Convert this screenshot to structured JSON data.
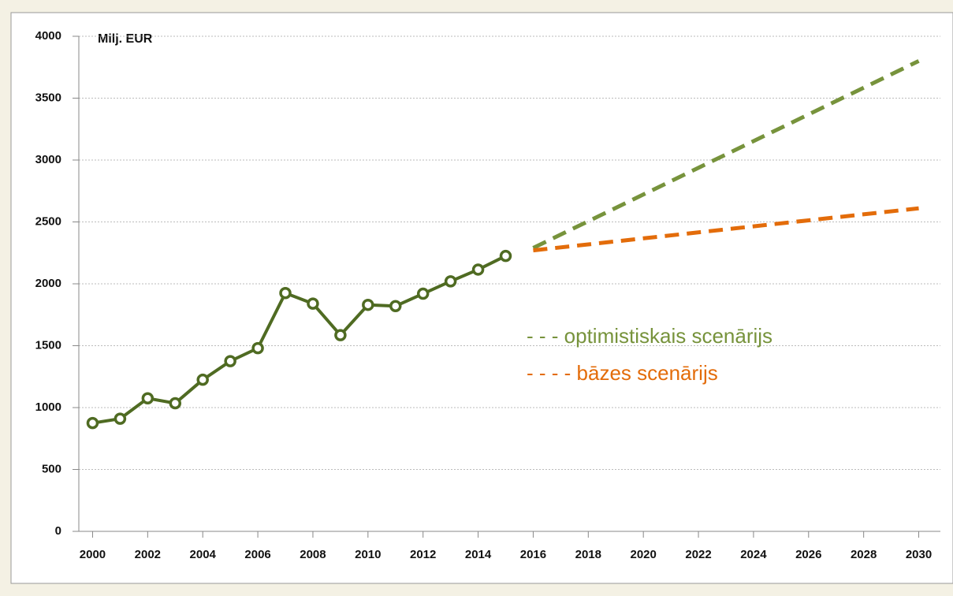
{
  "chart_data": {
    "type": "line",
    "ylabel": "Milj. EUR",
    "xlim": [
      1999.5,
      2030.5
    ],
    "xticks": [
      2000,
      2002,
      2004,
      2006,
      2008,
      2010,
      2012,
      2014,
      2016,
      2018,
      2020,
      2022,
      2024,
      2026,
      2028,
      2030
    ],
    "ylim": [
      0,
      4000
    ],
    "yticks": [
      0,
      500,
      1000,
      1500,
      2000,
      2500,
      3000,
      3500,
      4000
    ],
    "grid": true,
    "series": [
      {
        "color": "#4f6b22",
        "markers": true,
        "dashed": false,
        "x": [
          2000,
          2001,
          2002,
          2003,
          2004,
          2005,
          2006,
          2007,
          2008,
          2009,
          2010,
          2011,
          2012,
          2013,
          2014,
          2015
        ],
        "values": [
          875,
          910,
          1075,
          1035,
          1225,
          1375,
          1480,
          1925,
          1840,
          1585,
          1830,
          1820,
          1920,
          2020,
          2115,
          2225
        ]
      },
      {
        "color": "#77933c",
        "markers": false,
        "dashed": true,
        "x": [
          2016,
          2030
        ],
        "values": [
          2290,
          3800
        ]
      },
      {
        "color": "#e36c0a",
        "markers": false,
        "dashed": true,
        "x": [
          2016,
          2030
        ],
        "values": [
          2270,
          2610
        ]
      }
    ],
    "annotations": [
      {
        "text": "- - - optimistiskais scenārijs",
        "color": "#77933c"
      },
      {
        "text": "- - - - bāzes scenārijs",
        "color": "#e36c0a"
      }
    ]
  }
}
